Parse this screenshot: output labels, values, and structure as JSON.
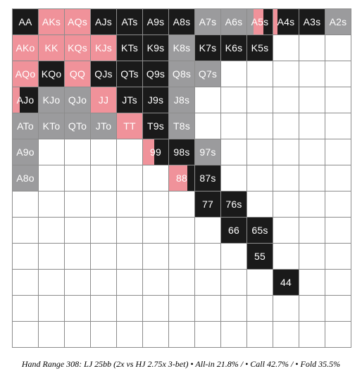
{
  "colors": {
    "allin": "#f0929a",
    "call": "#1a1a1a",
    "fold": "#9b9b9d",
    "empty": "#ffffff"
  },
  "caption": "Hand Range 308: LJ 25bb (2x vs HJ 2.75x 3-bet) • All-in 21.8% / • Call 42.7% / • Fold 35.5%",
  "rows": [
    [
      {
        "label": "AA",
        "split": [
          [
            "call",
            100
          ]
        ]
      },
      {
        "label": "AKs",
        "split": [
          [
            "allin",
            100
          ]
        ]
      },
      {
        "label": "AQs",
        "split": [
          [
            "allin",
            100
          ]
        ]
      },
      {
        "label": "AJs",
        "split": [
          [
            "call",
            100
          ]
        ]
      },
      {
        "label": "ATs",
        "split": [
          [
            "call",
            100
          ]
        ]
      },
      {
        "label": "A9s",
        "split": [
          [
            "call",
            100
          ]
        ]
      },
      {
        "label": "A8s",
        "split": [
          [
            "call",
            100
          ]
        ]
      },
      {
        "label": "A7s",
        "split": [
          [
            "fold",
            100
          ]
        ]
      },
      {
        "label": "A6s",
        "split": [
          [
            "fold",
            100
          ]
        ]
      },
      {
        "label": "A5s",
        "split": [
          [
            "fold",
            25
          ],
          [
            "allin",
            40
          ],
          [
            "call",
            35
          ]
        ]
      },
      {
        "label": "A4s",
        "split": [
          [
            "allin",
            18
          ],
          [
            "call",
            82
          ]
        ]
      },
      {
        "label": "A3s",
        "split": [
          [
            "call",
            100
          ]
        ]
      },
      {
        "label": "A2s",
        "split": [
          [
            "fold",
            100
          ]
        ]
      }
    ],
    [
      {
        "label": "AKo",
        "split": [
          [
            "allin",
            100
          ]
        ]
      },
      {
        "label": "KK",
        "split": [
          [
            "allin",
            100
          ]
        ]
      },
      {
        "label": "KQs",
        "split": [
          [
            "allin",
            100
          ]
        ]
      },
      {
        "label": "KJs",
        "split": [
          [
            "allin",
            100
          ]
        ]
      },
      {
        "label": "KTs",
        "split": [
          [
            "call",
            100
          ]
        ]
      },
      {
        "label": "K9s",
        "split": [
          [
            "call",
            100
          ]
        ]
      },
      {
        "label": "K8s",
        "split": [
          [
            "fold",
            100
          ]
        ]
      },
      {
        "label": "K7s",
        "split": [
          [
            "call",
            100
          ]
        ]
      },
      {
        "label": "K6s",
        "split": [
          [
            "call",
            100
          ]
        ]
      },
      {
        "label": "K5s",
        "split": [
          [
            "call",
            100
          ]
        ]
      },
      {
        "label": "",
        "split": []
      },
      {
        "label": "",
        "split": []
      },
      {
        "label": "",
        "split": []
      }
    ],
    [
      {
        "label": "AQo",
        "split": [
          [
            "allin",
            100
          ]
        ]
      },
      {
        "label": "KQo",
        "split": [
          [
            "call",
            100
          ]
        ]
      },
      {
        "label": "QQ",
        "split": [
          [
            "allin",
            100
          ]
        ]
      },
      {
        "label": "QJs",
        "split": [
          [
            "call",
            100
          ]
        ]
      },
      {
        "label": "QTs",
        "split": [
          [
            "call",
            100
          ]
        ]
      },
      {
        "label": "Q9s",
        "split": [
          [
            "call",
            100
          ]
        ]
      },
      {
        "label": "Q8s",
        "split": [
          [
            "fold",
            100
          ]
        ]
      },
      {
        "label": "Q7s",
        "split": [
          [
            "fold",
            100
          ]
        ]
      },
      {
        "label": "",
        "split": []
      },
      {
        "label": "",
        "split": []
      },
      {
        "label": "",
        "split": []
      },
      {
        "label": "",
        "split": []
      },
      {
        "label": "",
        "split": []
      }
    ],
    [
      {
        "label": "AJo",
        "split": [
          [
            "allin",
            28
          ],
          [
            "call",
            72
          ]
        ]
      },
      {
        "label": "KJo",
        "split": [
          [
            "fold",
            100
          ]
        ]
      },
      {
        "label": "QJo",
        "split": [
          [
            "fold",
            100
          ]
        ]
      },
      {
        "label": "JJ",
        "split": [
          [
            "allin",
            100
          ]
        ]
      },
      {
        "label": "JTs",
        "split": [
          [
            "call",
            100
          ]
        ]
      },
      {
        "label": "J9s",
        "split": [
          [
            "call",
            100
          ]
        ]
      },
      {
        "label": "J8s",
        "split": [
          [
            "fold",
            100
          ]
        ]
      },
      {
        "label": "",
        "split": []
      },
      {
        "label": "",
        "split": []
      },
      {
        "label": "",
        "split": []
      },
      {
        "label": "",
        "split": []
      },
      {
        "label": "",
        "split": []
      },
      {
        "label": "",
        "split": []
      }
    ],
    [
      {
        "label": "ATo",
        "split": [
          [
            "fold",
            100
          ]
        ]
      },
      {
        "label": "KTo",
        "split": [
          [
            "fold",
            100
          ]
        ]
      },
      {
        "label": "QTo",
        "split": [
          [
            "fold",
            100
          ]
        ]
      },
      {
        "label": "JTo",
        "split": [
          [
            "fold",
            100
          ]
        ]
      },
      {
        "label": "TT",
        "split": [
          [
            "allin",
            100
          ]
        ]
      },
      {
        "label": "T9s",
        "split": [
          [
            "call",
            100
          ]
        ]
      },
      {
        "label": "T8s",
        "split": [
          [
            "fold",
            100
          ]
        ]
      },
      {
        "label": "",
        "split": []
      },
      {
        "label": "",
        "split": []
      },
      {
        "label": "",
        "split": []
      },
      {
        "label": "",
        "split": []
      },
      {
        "label": "",
        "split": []
      },
      {
        "label": "",
        "split": []
      }
    ],
    [
      {
        "label": "A9o",
        "split": [
          [
            "fold",
            100
          ]
        ]
      },
      {
        "label": "",
        "split": []
      },
      {
        "label": "",
        "split": []
      },
      {
        "label": "",
        "split": []
      },
      {
        "label": "",
        "split": []
      },
      {
        "label": "99",
        "split": [
          [
            "allin",
            45
          ],
          [
            "call",
            55
          ]
        ]
      },
      {
        "label": "98s",
        "split": [
          [
            "call",
            100
          ]
        ]
      },
      {
        "label": "97s",
        "split": [
          [
            "fold",
            100
          ]
        ]
      },
      {
        "label": "",
        "split": []
      },
      {
        "label": "",
        "split": []
      },
      {
        "label": "",
        "split": []
      },
      {
        "label": "",
        "split": []
      },
      {
        "label": "",
        "split": []
      }
    ],
    [
      {
        "label": "A8o",
        "split": [
          [
            "fold",
            100
          ]
        ]
      },
      {
        "label": "",
        "split": []
      },
      {
        "label": "",
        "split": []
      },
      {
        "label": "",
        "split": []
      },
      {
        "label": "",
        "split": []
      },
      {
        "label": "",
        "split": []
      },
      {
        "label": "88",
        "split": [
          [
            "allin",
            72
          ],
          [
            "call",
            28
          ]
        ]
      },
      {
        "label": "87s",
        "split": [
          [
            "call",
            100
          ]
        ]
      },
      {
        "label": "",
        "split": []
      },
      {
        "label": "",
        "split": []
      },
      {
        "label": "",
        "split": []
      },
      {
        "label": "",
        "split": []
      },
      {
        "label": "",
        "split": []
      }
    ],
    [
      {
        "label": "",
        "split": []
      },
      {
        "label": "",
        "split": []
      },
      {
        "label": "",
        "split": []
      },
      {
        "label": "",
        "split": []
      },
      {
        "label": "",
        "split": []
      },
      {
        "label": "",
        "split": []
      },
      {
        "label": "",
        "split": []
      },
      {
        "label": "77",
        "split": [
          [
            "call",
            100
          ]
        ]
      },
      {
        "label": "76s",
        "split": [
          [
            "call",
            100
          ]
        ]
      },
      {
        "label": "",
        "split": []
      },
      {
        "label": "",
        "split": []
      },
      {
        "label": "",
        "split": []
      },
      {
        "label": "",
        "split": []
      }
    ],
    [
      {
        "label": "",
        "split": []
      },
      {
        "label": "",
        "split": []
      },
      {
        "label": "",
        "split": []
      },
      {
        "label": "",
        "split": []
      },
      {
        "label": "",
        "split": []
      },
      {
        "label": "",
        "split": []
      },
      {
        "label": "",
        "split": []
      },
      {
        "label": "",
        "split": []
      },
      {
        "label": "66",
        "split": [
          [
            "call",
            100
          ]
        ]
      },
      {
        "label": "65s",
        "split": [
          [
            "call",
            100
          ]
        ]
      },
      {
        "label": "",
        "split": []
      },
      {
        "label": "",
        "split": []
      },
      {
        "label": "",
        "split": []
      }
    ],
    [
      {
        "label": "",
        "split": []
      },
      {
        "label": "",
        "split": []
      },
      {
        "label": "",
        "split": []
      },
      {
        "label": "",
        "split": []
      },
      {
        "label": "",
        "split": []
      },
      {
        "label": "",
        "split": []
      },
      {
        "label": "",
        "split": []
      },
      {
        "label": "",
        "split": []
      },
      {
        "label": "",
        "split": []
      },
      {
        "label": "55",
        "split": [
          [
            "call",
            100
          ]
        ]
      },
      {
        "label": "",
        "split": []
      },
      {
        "label": "",
        "split": []
      },
      {
        "label": "",
        "split": []
      }
    ],
    [
      {
        "label": "",
        "split": []
      },
      {
        "label": "",
        "split": []
      },
      {
        "label": "",
        "split": []
      },
      {
        "label": "",
        "split": []
      },
      {
        "label": "",
        "split": []
      },
      {
        "label": "",
        "split": []
      },
      {
        "label": "",
        "split": []
      },
      {
        "label": "",
        "split": []
      },
      {
        "label": "",
        "split": []
      },
      {
        "label": "",
        "split": []
      },
      {
        "label": "44",
        "split": [
          [
            "call",
            100
          ]
        ]
      },
      {
        "label": "",
        "split": []
      },
      {
        "label": "",
        "split": []
      }
    ],
    [
      {
        "label": "",
        "split": []
      },
      {
        "label": "",
        "split": []
      },
      {
        "label": "",
        "split": []
      },
      {
        "label": "",
        "split": []
      },
      {
        "label": "",
        "split": []
      },
      {
        "label": "",
        "split": []
      },
      {
        "label": "",
        "split": []
      },
      {
        "label": "",
        "split": []
      },
      {
        "label": "",
        "split": []
      },
      {
        "label": "",
        "split": []
      },
      {
        "label": "",
        "split": []
      },
      {
        "label": "",
        "split": []
      },
      {
        "label": "",
        "split": []
      }
    ],
    [
      {
        "label": "",
        "split": []
      },
      {
        "label": "",
        "split": []
      },
      {
        "label": "",
        "split": []
      },
      {
        "label": "",
        "split": []
      },
      {
        "label": "",
        "split": []
      },
      {
        "label": "",
        "split": []
      },
      {
        "label": "",
        "split": []
      },
      {
        "label": "",
        "split": []
      },
      {
        "label": "",
        "split": []
      },
      {
        "label": "",
        "split": []
      },
      {
        "label": "",
        "split": []
      },
      {
        "label": "",
        "split": []
      },
      {
        "label": "",
        "split": []
      }
    ]
  ]
}
